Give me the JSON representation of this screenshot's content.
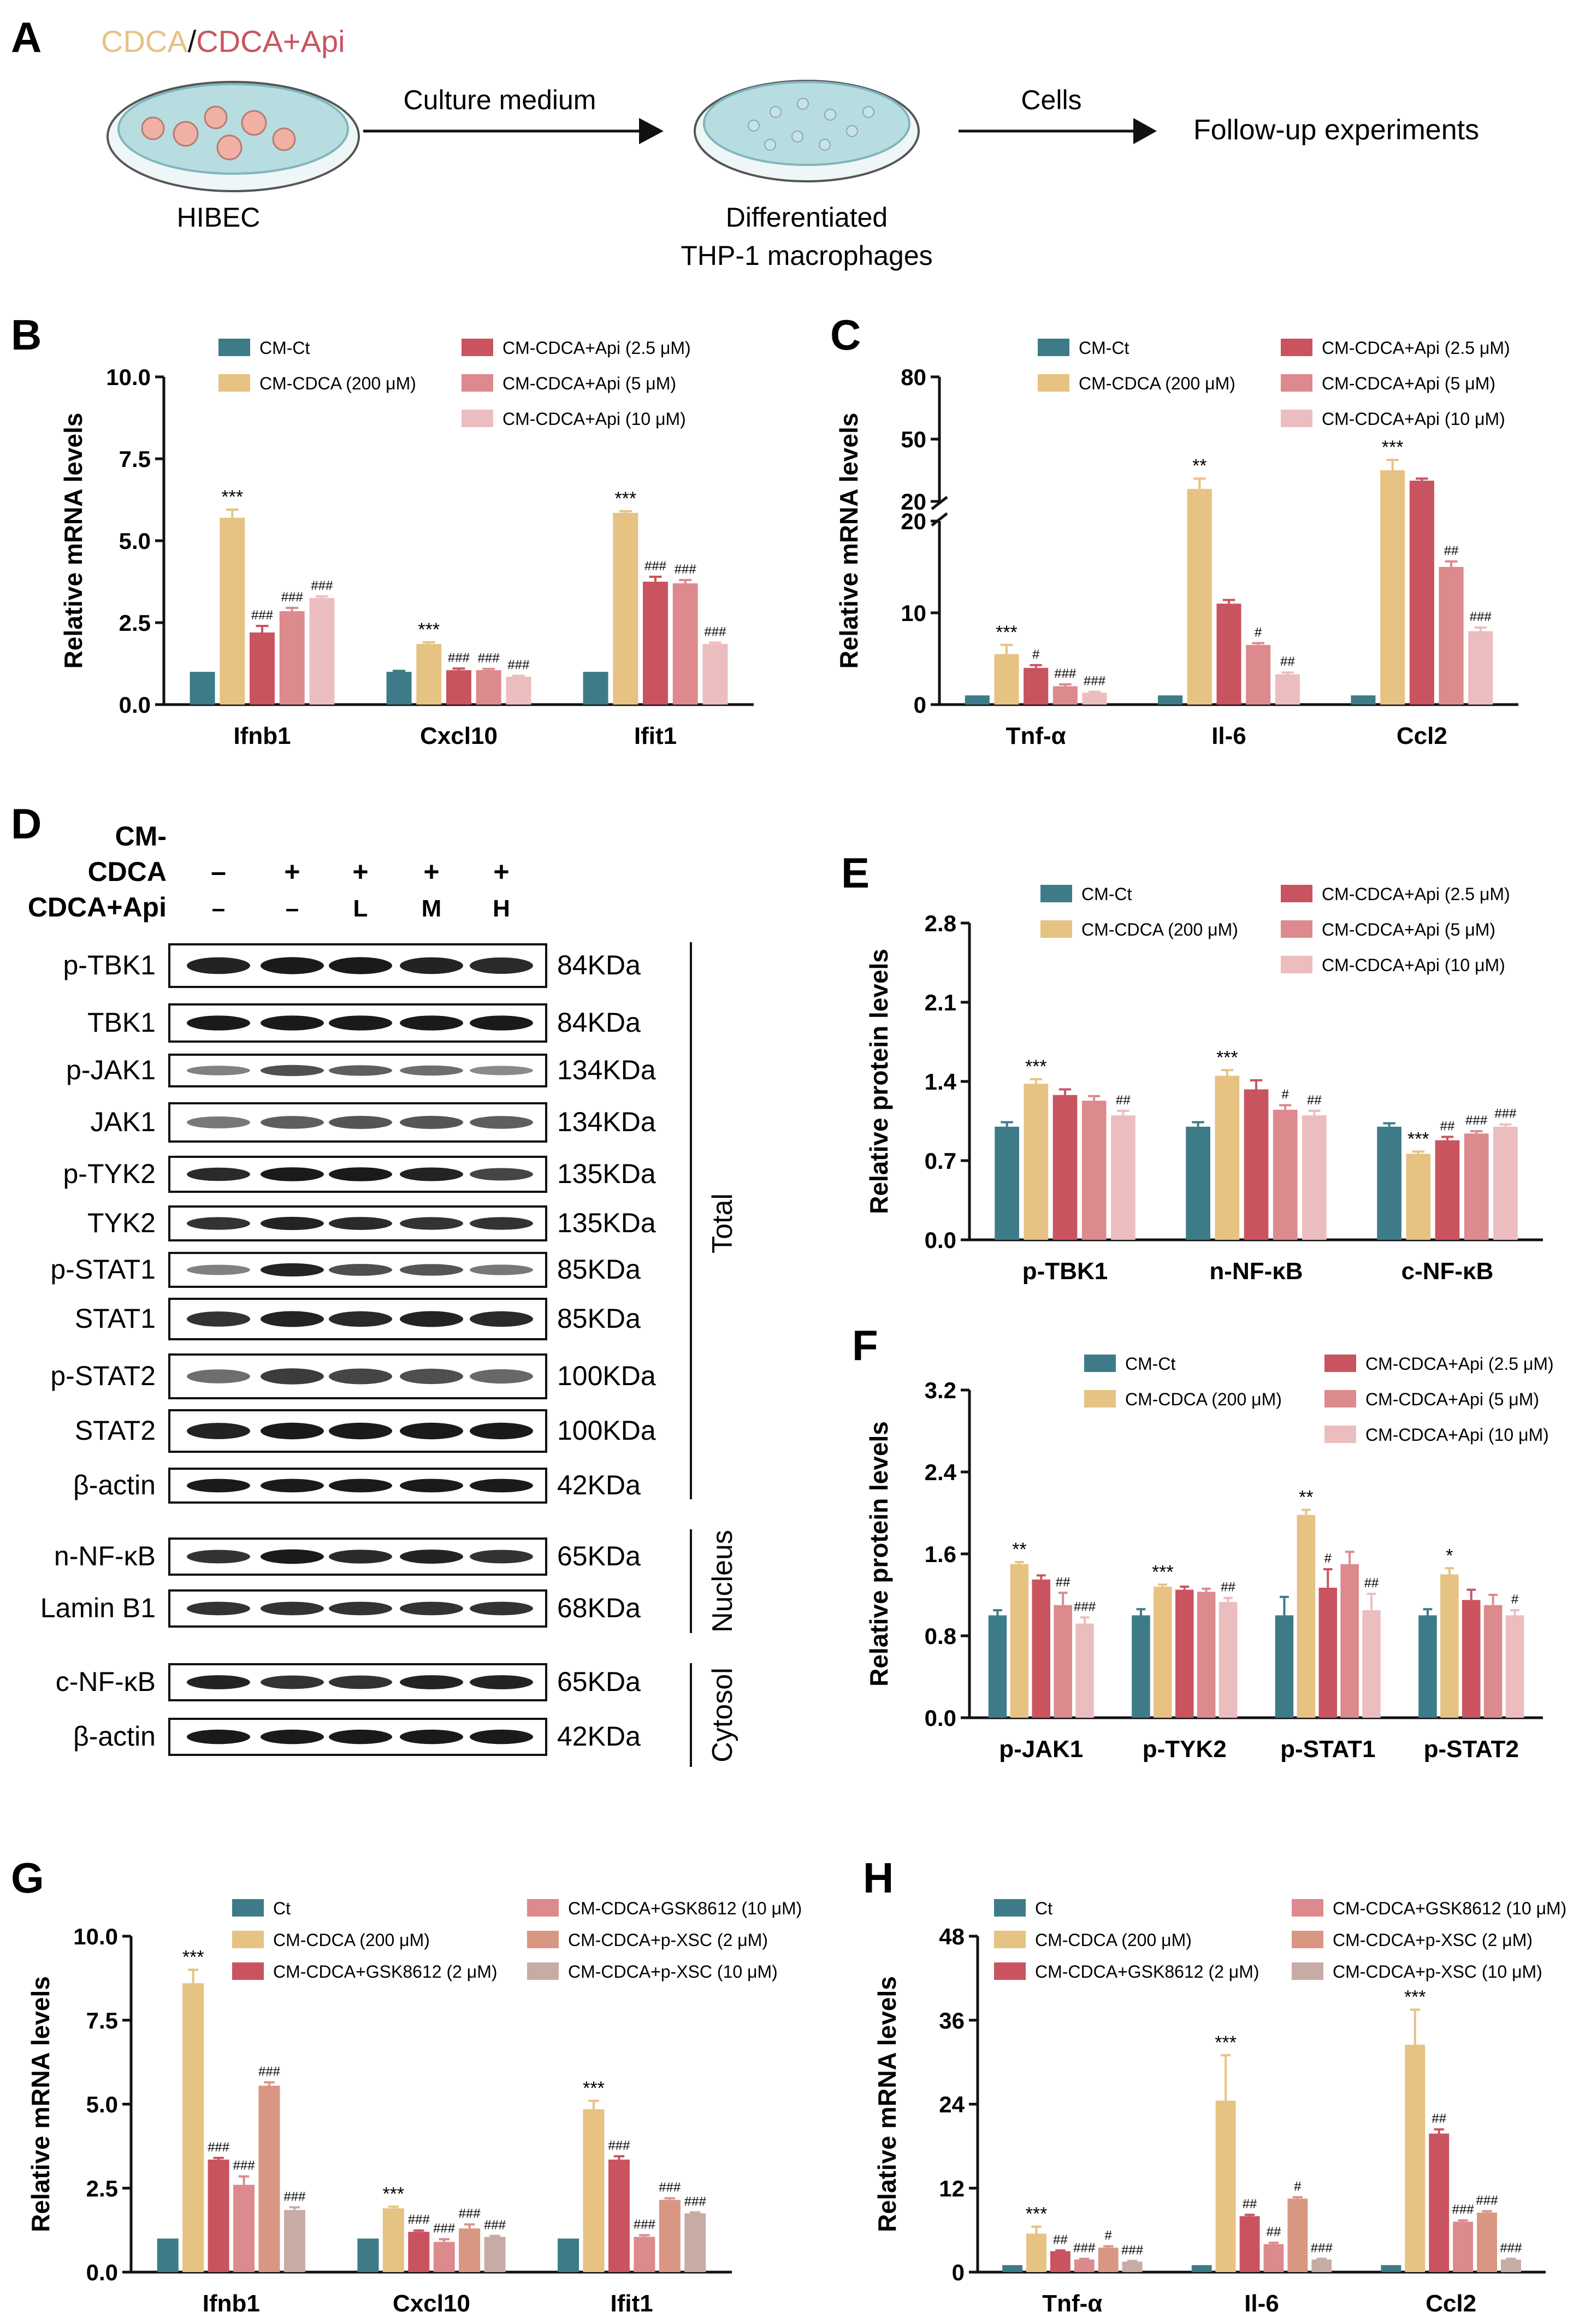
{
  "colors": {
    "ct": "#3e7b88",
    "cdca": "#e6c283",
    "api25": "#c9545f",
    "api5": "#dc8a8d",
    "api10": "#ecbdbf",
    "gsk2": "#c9545f",
    "gsk10": "#dc8a8d",
    "xsc2": "#d99683",
    "xsc10": "#c7aca6",
    "dish_rim": "#9ccbd0",
    "dish_fill": "#b8dde1",
    "cell": "#f1b0a4",
    "blot_bg": "#ffffff",
    "band": "#1a1a1a"
  },
  "panels": {
    "A": {
      "letter": "A",
      "title_cdca": "CDCA",
      "title_sep": "/",
      "title_api": "CDCA+Api",
      "dish1_label": "HIBEC",
      "arrow1_label": "Culture medium",
      "dish2_label_1": "Differentiated",
      "dish2_label_2": "THP-1 macrophages",
      "arrow2_label": "Cells",
      "end_label": "Follow-up experiments"
    },
    "D": {
      "letter": "D",
      "row_labels": [
        "CM-",
        "CDCA",
        "CDCA+Api"
      ],
      "row1_signs": [
        "–",
        "+",
        "+",
        "+",
        "+"
      ],
      "row2_signs": [
        "–",
        "–",
        "L",
        "M",
        "H"
      ],
      "bands": [
        {
          "name": "p-TBK1",
          "kda": "84KDa"
        },
        {
          "name": "TBK1",
          "kda": "84KDa"
        },
        {
          "name": "p-JAK1",
          "kda": "134KDa"
        },
        {
          "name": "JAK1",
          "kda": "134KDa"
        },
        {
          "name": "p-TYK2",
          "kda": "135KDa"
        },
        {
          "name": "TYK2",
          "kda": "135KDa"
        },
        {
          "name": "p-STAT1",
          "kda": "85KDa"
        },
        {
          "name": "STAT1",
          "kda": "85KDa"
        },
        {
          "name": "p-STAT2",
          "kda": "100KDa"
        },
        {
          "name": "STAT2",
          "kda": "100KDa"
        },
        {
          "name": "β-actin",
          "kda": "42KDa"
        },
        {
          "name": "n-NF-κB",
          "kda": "65KDa"
        },
        {
          "name": "Lamin B1",
          "kda": "68KDa"
        },
        {
          "name": "c-NF-κB",
          "kda": "65KDa"
        },
        {
          "name": "β-actin",
          "kda": "42KDa"
        }
      ],
      "groups": [
        "Total",
        "Nucleus",
        "Cytosol"
      ]
    }
  },
  "chart_data": [
    {
      "panel": "B",
      "type": "bar",
      "ylabel": "Relative mRNA levels",
      "ylim": [
        0,
        10
      ],
      "yticks": [
        "0.0",
        "2.5",
        "5.0",
        "7.5",
        "10.0"
      ],
      "categories": [
        "Ifnb1",
        "Cxcl10",
        "Ifit1"
      ],
      "series": [
        {
          "name": "CM-Ct",
          "color": "ct",
          "values": [
            1.0,
            1.0,
            1.0
          ],
          "errors": [
            0,
            0.03,
            0
          ],
          "sig": [
            "",
            "",
            ""
          ]
        },
        {
          "name": "CM-CDCA (200 μM)",
          "color": "cdca",
          "values": [
            5.7,
            1.85,
            5.85
          ],
          "errors": [
            0.25,
            0.05,
            0.05
          ],
          "sig": [
            "***",
            "***",
            "***"
          ]
        },
        {
          "name": "CM-CDCA+Api (2.5 μM)",
          "color": "api25",
          "values": [
            2.2,
            1.05,
            3.75
          ],
          "errors": [
            0.2,
            0.05,
            0.15
          ],
          "sig": [
            "###",
            "###",
            "###"
          ]
        },
        {
          "name": "CM-CDCA+Api (5 μM)",
          "color": "api5",
          "values": [
            2.85,
            1.05,
            3.7
          ],
          "errors": [
            0.1,
            0.04,
            0.1
          ],
          "sig": [
            "###",
            "###",
            "###"
          ]
        },
        {
          "name": "CM-CDCA+Api (10 μM)",
          "color": "api10",
          "values": [
            3.25,
            0.85,
            1.85
          ],
          "errors": [
            0.05,
            0.03,
            0.04
          ],
          "sig": [
            "###",
            "###",
            "###"
          ]
        }
      ]
    },
    {
      "panel": "C",
      "type": "bar",
      "broken_axis": true,
      "ylabel": "Relative mRNA levels",
      "ylim_lower": [
        0,
        20
      ],
      "ylim_upper": [
        20,
        80
      ],
      "yticks_lower": [
        "0",
        "10",
        "20"
      ],
      "yticks_upper": [
        "20",
        "50",
        "80"
      ],
      "categories": [
        "Tnf-α",
        "Il-6",
        "Ccl2"
      ],
      "series": [
        {
          "name": "CM-Ct",
          "color": "ct",
          "values": [
            1.0,
            1.0,
            1.0
          ],
          "errors": [
            0,
            0,
            0
          ],
          "sig": [
            "",
            "",
            ""
          ]
        },
        {
          "name": "CM-CDCA (200 μM)",
          "color": "cdca",
          "values": [
            5.5,
            26,
            35
          ],
          "errors": [
            1.0,
            5,
            5
          ],
          "sig": [
            "***",
            "**",
            "***"
          ]
        },
        {
          "name": "CM-CDCA+Api (2.5 μM)",
          "color": "api25",
          "values": [
            4.0,
            11.0,
            30
          ],
          "errors": [
            0.3,
            0.4,
            1
          ],
          "sig": [
            "#",
            "",
            ""
          ]
        },
        {
          "name": "CM-CDCA+Api (5 μM)",
          "color": "api5",
          "values": [
            2.0,
            6.5,
            15.0
          ],
          "errors": [
            0.2,
            0.2,
            0.6
          ],
          "sig": [
            "###",
            "#",
            "##"
          ]
        },
        {
          "name": "CM-CDCA+Api (10 μM)",
          "color": "api10",
          "values": [
            1.3,
            3.3,
            8.0
          ],
          "errors": [
            0.1,
            0.2,
            0.4
          ],
          "sig": [
            "###",
            "##",
            "###"
          ]
        }
      ]
    },
    {
      "panel": "E",
      "type": "bar",
      "ylabel": "Relative protein levels",
      "ylim": [
        0,
        2.8
      ],
      "yticks": [
        "0.0",
        "0.7",
        "1.4",
        "2.1",
        "2.8"
      ],
      "categories": [
        "p-TBK1",
        "n-NF-κB",
        "c-NF-κB"
      ],
      "series": [
        {
          "name": "CM-Ct",
          "color": "ct",
          "values": [
            1.0,
            1.0,
            1.0
          ],
          "errors": [
            0.04,
            0.04,
            0.03
          ],
          "sig": [
            "",
            "",
            ""
          ]
        },
        {
          "name": "CM-CDCA (200 μM)",
          "color": "cdca",
          "values": [
            1.38,
            1.45,
            0.76
          ],
          "errors": [
            0.04,
            0.05,
            0.02
          ],
          "sig": [
            "***",
            "***",
            "***"
          ]
        },
        {
          "name": "CM-CDCA+Api (2.5 μM)",
          "color": "api25",
          "values": [
            1.28,
            1.33,
            0.88
          ],
          "errors": [
            0.05,
            0.08,
            0.03
          ],
          "sig": [
            "",
            "",
            "##"
          ]
        },
        {
          "name": "CM-CDCA+Api (5 μM)",
          "color": "api5",
          "values": [
            1.23,
            1.15,
            0.94
          ],
          "errors": [
            0.04,
            0.04,
            0.02
          ],
          "sig": [
            "",
            "#",
            "###"
          ]
        },
        {
          "name": "CM-CDCA+Api (10 μM)",
          "color": "api10",
          "values": [
            1.1,
            1.1,
            1.0
          ],
          "errors": [
            0.04,
            0.04,
            0.02
          ],
          "sig": [
            "##",
            "##",
            "###"
          ]
        }
      ]
    },
    {
      "panel": "F",
      "type": "bar",
      "ylabel": "Relative protein levels",
      "ylim": [
        0,
        3.2
      ],
      "yticks": [
        "0.0",
        "0.8",
        "1.6",
        "2.4",
        "3.2"
      ],
      "categories": [
        "p-JAK1",
        "p-TYK2",
        "p-STAT1",
        "p-STAT2"
      ],
      "series": [
        {
          "name": "CM-Ct",
          "color": "ct",
          "values": [
            1.0,
            1.0,
            1.0,
            1.0
          ],
          "errors": [
            0.05,
            0.06,
            0.18,
            0.06
          ],
          "sig": [
            "",
            "",
            "",
            ""
          ]
        },
        {
          "name": "CM-CDCA (200 μM)",
          "color": "cdca",
          "values": [
            1.5,
            1.28,
            1.98,
            1.4
          ],
          "errors": [
            0.02,
            0.02,
            0.05,
            0.06
          ],
          "sig": [
            "**",
            "***",
            "**",
            "*"
          ]
        },
        {
          "name": "CM-CDCA+Api (2.5 μM)",
          "color": "api25",
          "values": [
            1.35,
            1.25,
            1.27,
            1.15
          ],
          "errors": [
            0.04,
            0.03,
            0.18,
            0.1
          ],
          "sig": [
            "",
            "",
            "#",
            ""
          ]
        },
        {
          "name": "CM-CDCA+Api (5 μM)",
          "color": "api5",
          "values": [
            1.1,
            1.23,
            1.5,
            1.1
          ],
          "errors": [
            0.12,
            0.03,
            0.12,
            0.1
          ],
          "sig": [
            "##",
            "",
            "",
            ""
          ]
        },
        {
          "name": "CM-CDCA+Api (10 μM)",
          "color": "api10",
          "values": [
            0.92,
            1.13,
            1.05,
            1.0
          ],
          "errors": [
            0.06,
            0.04,
            0.16,
            0.05
          ],
          "sig": [
            "###",
            "##",
            "##",
            "#"
          ]
        }
      ]
    },
    {
      "panel": "G",
      "type": "bar",
      "ylabel": "Relative mRNA levels",
      "ylim": [
        0,
        10
      ],
      "yticks": [
        "0.0",
        "2.5",
        "5.0",
        "7.5",
        "10.0"
      ],
      "categories": [
        "Ifnb1",
        "Cxcl10",
        "Ifit1"
      ],
      "series": [
        {
          "name": "Ct",
          "color": "ct",
          "values": [
            1.0,
            1.0,
            1.0
          ],
          "errors": [
            0,
            0,
            0
          ],
          "sig": [
            "",
            "",
            ""
          ]
        },
        {
          "name": "CM-CDCA (200 μM)",
          "color": "cdca",
          "values": [
            8.6,
            1.9,
            4.85
          ],
          "errors": [
            0.4,
            0.05,
            0.25
          ],
          "sig": [
            "***",
            "***",
            "***"
          ]
        },
        {
          "name": "CM-CDCA+GSK8612 (2 μM)",
          "color": "gsk2",
          "values": [
            3.35,
            1.2,
            3.35
          ],
          "errors": [
            0.05,
            0.04,
            0.1
          ],
          "sig": [
            "###",
            "###",
            "###"
          ]
        },
        {
          "name": "CM-CDCA+GSK8612 (10 μM)",
          "color": "gsk10",
          "values": [
            2.6,
            0.9,
            1.05
          ],
          "errors": [
            0.25,
            0.08,
            0.05
          ],
          "sig": [
            "###",
            "###",
            "###"
          ]
        },
        {
          "name": "CM-CDCA+p-XSC (2 μM)",
          "color": "xsc2",
          "values": [
            5.55,
            1.3,
            2.15
          ],
          "errors": [
            0.1,
            0.12,
            0.05
          ],
          "sig": [
            "###",
            "###",
            "###"
          ]
        },
        {
          "name": "CM-CDCA+p-XSC (10 μM)",
          "color": "xsc10",
          "values": [
            1.85,
            1.05,
            1.75
          ],
          "errors": [
            0.08,
            0.03,
            0.03
          ],
          "sig": [
            "###",
            "###",
            "###"
          ]
        }
      ]
    },
    {
      "panel": "H",
      "type": "bar",
      "ylabel": "Relative mRNA levels",
      "ylim": [
        0,
        48
      ],
      "yticks": [
        "0",
        "12",
        "24",
        "36",
        "48"
      ],
      "categories": [
        "Tnf-α",
        "Il-6",
        "Ccl2"
      ],
      "series": [
        {
          "name": "Ct",
          "color": "ct",
          "values": [
            1.0,
            1.0,
            1.0
          ],
          "errors": [
            0,
            0,
            0
          ],
          "sig": [
            "",
            "",
            ""
          ]
        },
        {
          "name": "CM-CDCA (200 μM)",
          "color": "cdca",
          "values": [
            5.5,
            24.5,
            32.5
          ],
          "errors": [
            1.0,
            6.5,
            5.0
          ],
          "sig": [
            "***",
            "***",
            "***"
          ]
        },
        {
          "name": "CM-CDCA+GSK8612 (2 μM)",
          "color": "gsk2",
          "values": [
            3.0,
            8.0,
            19.8
          ],
          "errors": [
            0.1,
            0.2,
            0.6
          ],
          "sig": [
            "##",
            "##",
            "##"
          ]
        },
        {
          "name": "CM-CDCA+GSK8612 (10 μM)",
          "color": "gsk10",
          "values": [
            1.8,
            4.0,
            7.2
          ],
          "errors": [
            0.1,
            0.2,
            0.2
          ],
          "sig": [
            "###",
            "##",
            "###"
          ]
        },
        {
          "name": "CM-CDCA+p-XSC (2 μM)",
          "color": "xsc2",
          "values": [
            3.5,
            10.5,
            8.5
          ],
          "errors": [
            0.2,
            0.2,
            0.2
          ],
          "sig": [
            "#",
            "#",
            "###"
          ]
        },
        {
          "name": "CM-CDCA+p-XSC (10 μM)",
          "color": "xsc10",
          "values": [
            1.5,
            1.8,
            1.8
          ],
          "errors": [
            0.1,
            0.1,
            0.1
          ],
          "sig": [
            "###",
            "###",
            "###"
          ]
        }
      ]
    }
  ]
}
